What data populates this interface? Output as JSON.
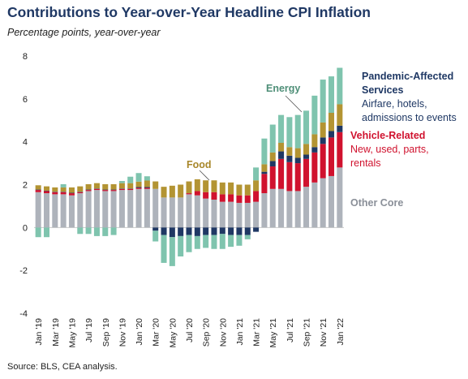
{
  "title": "Contributions to Year-over-Year Headline CPI Inflation",
  "subtitle": "Percentage points, year-over-year",
  "source": "Source: BLS, CEA analysis.",
  "colors": {
    "other_core": "#aeb3bb",
    "vehicle": "#d0122e",
    "pandemic": "#1f3864",
    "food": "#b39433",
    "energy": "#7fc4ae",
    "axis_text": "#222222",
    "grid": "#cccccc"
  },
  "annotations": {
    "pandemic_title_1": "Pandemic-Affected",
    "pandemic_title_2": "Services",
    "pandemic_desc_1": "Airfare, hotels,",
    "pandemic_desc_2": "admissions to events",
    "vehicle_title": "Vehicle-Related",
    "vehicle_desc_1": "New, used, parts,",
    "vehicle_desc_2": "rentals",
    "other_core": "Other Core",
    "food": "Food",
    "energy": "Energy"
  },
  "chart_data": {
    "type": "bar",
    "stacked": true,
    "title": "Contributions to Year-over-Year Headline CPI Inflation",
    "subtitle": "Percentage points, year-over-year",
    "ylim": [
      -4,
      8
    ],
    "yticks": [
      "-4",
      "-2",
      "0",
      "2",
      "4",
      "6",
      "8"
    ],
    "grid": false,
    "categories": [
      "Jan '19",
      "Feb '19",
      "Mar '19",
      "Apr '19",
      "May '19",
      "Jun '19",
      "Jul '19",
      "Aug '19",
      "Sep '19",
      "Oct '19",
      "Nov '19",
      "Dec '19",
      "Jan '20",
      "Feb '20",
      "Mar '20",
      "Apr '20",
      "May '20",
      "Jun '20",
      "Jul '20",
      "Aug '20",
      "Sep '20",
      "Oct '20",
      "Nov '20",
      "Dec '20",
      "Jan '21",
      "Feb '21",
      "Mar '21",
      "Apr '21",
      "May '21",
      "Jun '21",
      "Jul '21",
      "Aug '21",
      "Sep '21",
      "Oct '21",
      "Nov '21",
      "Dec '21",
      "Jan '22"
    ],
    "tick_labels": [
      "Jan '19",
      "Mar '19",
      "May '19",
      "Jul '19",
      "Sep '19",
      "Nov '19",
      "Jan '20",
      "Mar '20",
      "May '20",
      "Jul '20",
      "Sep '20",
      "Nov '20",
      "Jan '21",
      "Mar '21",
      "May '21",
      "Jul '21",
      "Sep '21",
      "Nov '21",
      "Jan '22"
    ],
    "series": [
      {
        "name": "Other Core",
        "color": "#aeb3bb",
        "values": [
          1.65,
          1.6,
          1.55,
          1.55,
          1.5,
          1.6,
          1.7,
          1.75,
          1.7,
          1.7,
          1.75,
          1.75,
          1.8,
          1.8,
          1.8,
          1.4,
          1.4,
          1.4,
          1.55,
          1.5,
          1.35,
          1.3,
          1.2,
          1.2,
          1.15,
          1.15,
          1.2,
          1.6,
          1.8,
          1.8,
          1.7,
          1.7,
          1.9,
          2.1,
          2.3,
          2.4,
          2.8
        ]
      },
      {
        "name": "Vehicle-Related",
        "color": "#d0122e",
        "values": [
          0.1,
          0.1,
          0.1,
          0.1,
          0.1,
          0.05,
          0.05,
          0.05,
          0.05,
          0.05,
          0.05,
          0.05,
          0.05,
          0.05,
          0.0,
          0.0,
          0.0,
          0.0,
          0.05,
          0.2,
          0.3,
          0.35,
          0.35,
          0.35,
          0.35,
          0.35,
          0.5,
          0.9,
          1.05,
          1.4,
          1.35,
          1.3,
          1.3,
          1.4,
          1.6,
          1.8,
          1.65
        ]
      },
      {
        "name": "Pandemic-Affected Services",
        "color": "#1f3864",
        "values": [
          0.02,
          0.02,
          0.02,
          0.02,
          0.02,
          0.02,
          0.02,
          0.02,
          0.02,
          0.02,
          0.02,
          0.02,
          0.04,
          0.04,
          -0.15,
          -0.35,
          -0.45,
          -0.4,
          -0.35,
          -0.4,
          -0.35,
          -0.35,
          -0.3,
          -0.35,
          -0.35,
          -0.35,
          -0.2,
          0.1,
          0.25,
          0.35,
          0.3,
          0.25,
          0.2,
          0.25,
          0.3,
          0.3,
          0.3
        ]
      },
      {
        "name": "Food",
        "color": "#b39433",
        "values": [
          0.2,
          0.2,
          0.2,
          0.2,
          0.25,
          0.25,
          0.25,
          0.25,
          0.25,
          0.25,
          0.25,
          0.25,
          0.25,
          0.3,
          0.35,
          0.5,
          0.55,
          0.6,
          0.55,
          0.55,
          0.55,
          0.55,
          0.55,
          0.55,
          0.5,
          0.5,
          0.5,
          0.35,
          0.4,
          0.4,
          0.4,
          0.45,
          0.5,
          0.6,
          0.7,
          0.85,
          1.0
        ]
      },
      {
        "name": "Energy",
        "color": "#7fc4ae",
        "values": [
          -0.45,
          -0.45,
          0.0,
          0.15,
          0.0,
          -0.3,
          -0.3,
          -0.4,
          -0.4,
          -0.35,
          0.1,
          0.3,
          0.4,
          0.2,
          -0.5,
          -1.3,
          -1.35,
          -0.95,
          -0.8,
          -0.6,
          -0.6,
          -0.65,
          -0.7,
          -0.55,
          -0.5,
          -0.2,
          0.6,
          1.2,
          1.3,
          1.3,
          1.4,
          1.55,
          1.55,
          1.8,
          2.0,
          1.7,
          1.7
        ]
      }
    ]
  }
}
